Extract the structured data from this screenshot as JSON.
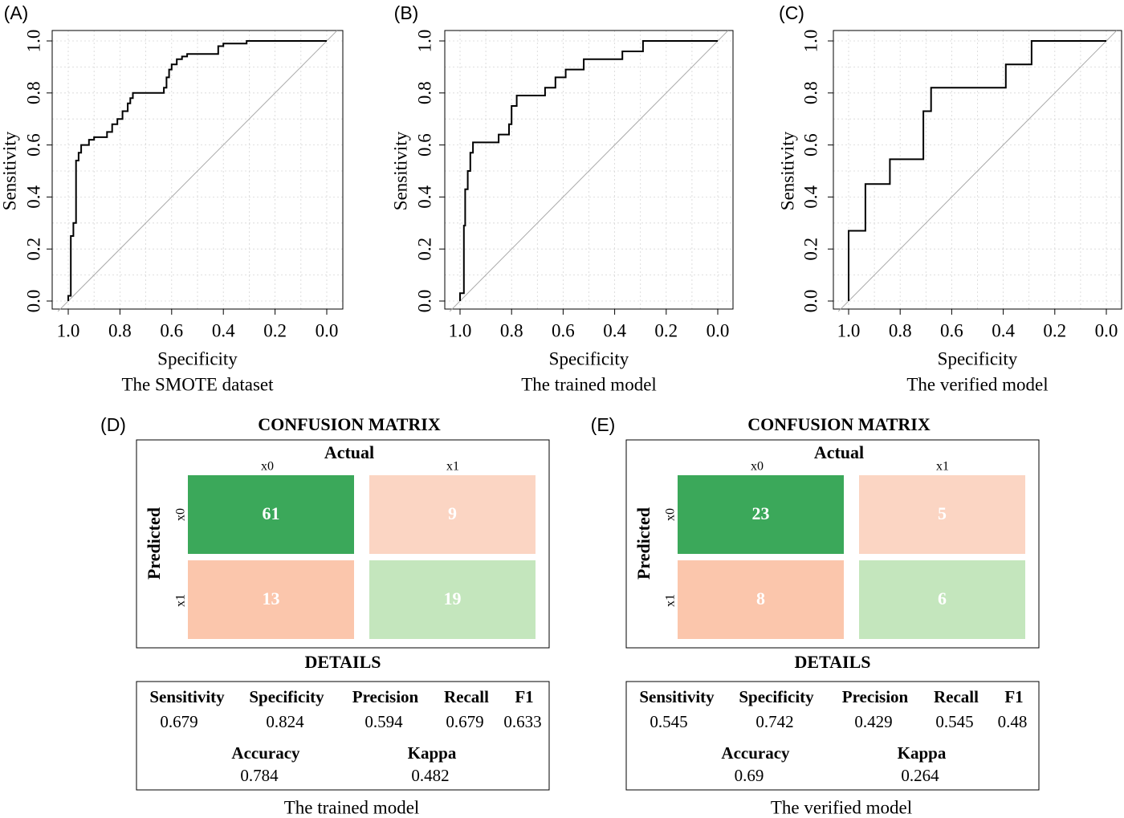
{
  "chart_data": [
    {
      "type": "line",
      "panel_label": "(A)",
      "caption": "The SMOTE dataset",
      "xlabel": "Specificity",
      "ylabel": "Sensitivity",
      "xlim": [
        1.0,
        0.0
      ],
      "ylim": [
        0.0,
        1.0
      ],
      "x_ticks": [
        "1.0",
        "0.8",
        "0.6",
        "0.4",
        "0.2",
        "0.0"
      ],
      "y_ticks": [
        "0.0",
        "0.2",
        "0.4",
        "0.6",
        "0.8",
        "1.0"
      ],
      "grid": true,
      "diagonal_reference": true,
      "x": [
        1.0,
        1.0,
        0.99,
        0.99,
        0.98,
        0.98,
        0.97,
        0.97,
        0.96,
        0.96,
        0.95,
        0.95,
        0.92,
        0.92,
        0.9,
        0.9,
        0.85,
        0.85,
        0.83,
        0.83,
        0.81,
        0.81,
        0.79,
        0.79,
        0.77,
        0.77,
        0.76,
        0.76,
        0.75,
        0.75,
        0.63,
        0.63,
        0.62,
        0.62,
        0.61,
        0.61,
        0.6,
        0.6,
        0.58,
        0.58,
        0.56,
        0.56,
        0.54,
        0.54,
        0.42,
        0.42,
        0.4,
        0.4,
        0.31,
        0.31,
        0.0
      ],
      "y": [
        0.0,
        0.02,
        0.02,
        0.25,
        0.25,
        0.3,
        0.3,
        0.54,
        0.54,
        0.57,
        0.57,
        0.6,
        0.6,
        0.62,
        0.62,
        0.63,
        0.63,
        0.65,
        0.65,
        0.68,
        0.68,
        0.7,
        0.7,
        0.73,
        0.73,
        0.76,
        0.76,
        0.78,
        0.78,
        0.8,
        0.8,
        0.82,
        0.82,
        0.86,
        0.86,
        0.89,
        0.89,
        0.91,
        0.91,
        0.93,
        0.93,
        0.94,
        0.94,
        0.95,
        0.95,
        0.98,
        0.98,
        0.99,
        0.99,
        1.0,
        1.0
      ]
    },
    {
      "type": "line",
      "panel_label": "(B)",
      "caption": "The trained model",
      "xlabel": "Specificity",
      "ylabel": "Sensitivity",
      "xlim": [
        1.0,
        0.0
      ],
      "ylim": [
        0.0,
        1.0
      ],
      "x_ticks": [
        "1.0",
        "0.8",
        "0.6",
        "0.4",
        "0.2",
        "0.0"
      ],
      "y_ticks": [
        "0.0",
        "0.2",
        "0.4",
        "0.6",
        "0.8",
        "1.0"
      ],
      "grid": true,
      "diagonal_reference": true,
      "x": [
        1.0,
        1.0,
        0.985,
        0.985,
        0.98,
        0.98,
        0.97,
        0.97,
        0.96,
        0.96,
        0.95,
        0.95,
        0.85,
        0.85,
        0.81,
        0.81,
        0.8,
        0.8,
        0.78,
        0.78,
        0.67,
        0.67,
        0.63,
        0.63,
        0.59,
        0.59,
        0.52,
        0.52,
        0.44,
        0.44,
        0.37,
        0.37,
        0.29,
        0.29,
        0.0
      ],
      "y": [
        0.0,
        0.03,
        0.03,
        0.29,
        0.29,
        0.43,
        0.43,
        0.5,
        0.5,
        0.57,
        0.57,
        0.61,
        0.61,
        0.64,
        0.64,
        0.68,
        0.68,
        0.75,
        0.75,
        0.79,
        0.79,
        0.82,
        0.82,
        0.86,
        0.86,
        0.89,
        0.89,
        0.93,
        0.93,
        0.93,
        0.93,
        0.96,
        0.96,
        1.0,
        1.0
      ]
    },
    {
      "type": "line",
      "panel_label": "(C)",
      "caption": "The verified model",
      "xlabel": "Specificity",
      "ylabel": "Sensitivity",
      "xlim": [
        1.0,
        0.0
      ],
      "ylim": [
        0.0,
        1.0
      ],
      "x_ticks": [
        "1.0",
        "0.8",
        "0.6",
        "0.4",
        "0.2",
        "0.0"
      ],
      "y_ticks": [
        "0.0",
        "0.2",
        "0.4",
        "0.6",
        "0.8",
        "1.0"
      ],
      "grid": true,
      "diagonal_reference": true,
      "x": [
        1.0,
        1.0,
        0.935,
        0.935,
        0.84,
        0.84,
        0.71,
        0.71,
        0.68,
        0.68,
        0.39,
        0.39,
        0.29,
        0.29,
        0.0
      ],
      "y": [
        0.0,
        0.27,
        0.27,
        0.45,
        0.45,
        0.545,
        0.545,
        0.73,
        0.73,
        0.82,
        0.82,
        0.91,
        0.91,
        1.0,
        1.0
      ]
    }
  ],
  "confusion_panels": [
    {
      "panel_label": "(D)",
      "title": "CONFUSION MATRIX",
      "actual_label": "Actual",
      "predicted_label": "Predicted",
      "col_labels": [
        "x0",
        "x1"
      ],
      "row_labels": [
        "x0",
        "x1"
      ],
      "cells": [
        {
          "value": "61",
          "color": "#3ba85a"
        },
        {
          "value": "9",
          "color": "#fbd5c3"
        },
        {
          "value": "13",
          "color": "#fbc6ac"
        },
        {
          "value": "19",
          "color": "#c4e6bd"
        }
      ],
      "details_title": "DETAILS",
      "metrics_row1": [
        {
          "name": "Sensitivity",
          "value": "0.679"
        },
        {
          "name": "Specificity",
          "value": "0.824"
        },
        {
          "name": "Precision",
          "value": "0.594"
        },
        {
          "name": "Recall",
          "value": "0.679"
        },
        {
          "name": "F1",
          "value": "0.633"
        }
      ],
      "metrics_row2": [
        {
          "name": "Accuracy",
          "value": "0.784"
        },
        {
          "name": "Kappa",
          "value": "0.482"
        }
      ],
      "caption": "The trained model"
    },
    {
      "panel_label": "(E)",
      "title": "CONFUSION MATRIX",
      "actual_label": "Actual",
      "predicted_label": "Predicted",
      "col_labels": [
        "x0",
        "x1"
      ],
      "row_labels": [
        "x0",
        "x1"
      ],
      "cells": [
        {
          "value": "23",
          "color": "#3ba85a"
        },
        {
          "value": "5",
          "color": "#fbd5c3"
        },
        {
          "value": "8",
          "color": "#fbc6ac"
        },
        {
          "value": "6",
          "color": "#c4e6bd"
        }
      ],
      "details_title": "DETAILS",
      "metrics_row1": [
        {
          "name": "Sensitivity",
          "value": "0.545"
        },
        {
          "name": "Specificity",
          "value": "0.742"
        },
        {
          "name": "Precision",
          "value": "0.429"
        },
        {
          "name": "Recall",
          "value": "0.545"
        },
        {
          "name": "F1",
          "value": "0.48"
        }
      ],
      "metrics_row2": [
        {
          "name": "Accuracy",
          "value": "0.69"
        },
        {
          "name": "Kappa",
          "value": "0.264"
        }
      ],
      "caption": "The verified model"
    }
  ]
}
